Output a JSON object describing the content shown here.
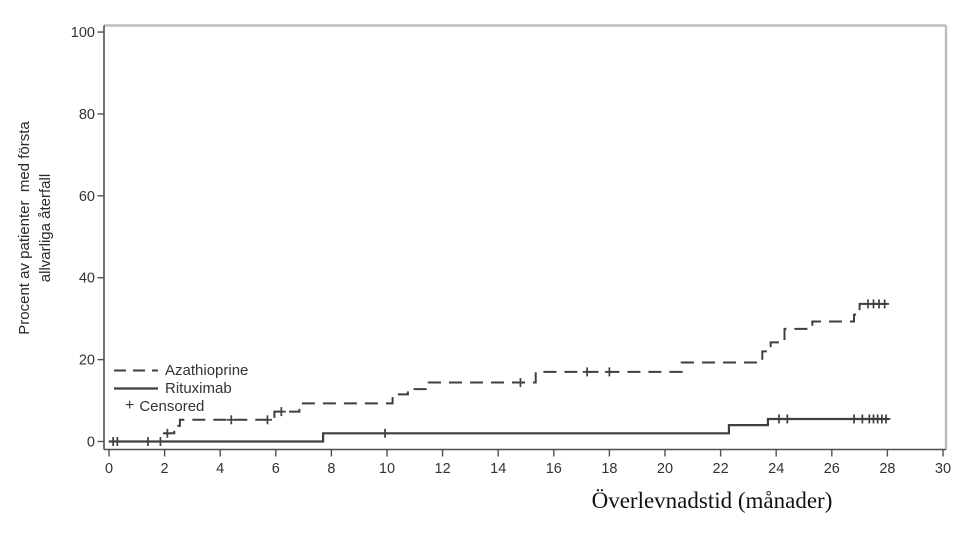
{
  "chart_data": {
    "type": "line",
    "variant": "kaplan_meier_step",
    "title": "",
    "xlabel": "Överlevnadstid (månader)",
    "ylabel_lines": [
      "Procent av patienter  med första",
      "allvarliga återfall"
    ],
    "xlim": [
      0,
      30
    ],
    "ylim": [
      0,
      100
    ],
    "x_ticks": [
      0,
      2,
      4,
      6,
      8,
      10,
      12,
      14,
      16,
      18,
      20,
      22,
      24,
      26,
      28,
      30
    ],
    "y_ticks": [
      0,
      20,
      40,
      60,
      80,
      100
    ],
    "grid": false,
    "legend_position": "inside-bottom-left",
    "legend": [
      {
        "label": "Azathioprine",
        "style": "dashed"
      },
      {
        "label": "Rituximab",
        "style": "solid"
      },
      {
        "label": "Censored",
        "style": "plus",
        "symbol": "+"
      }
    ],
    "colors": {
      "series": "#3f3f3f",
      "axis": "#4f4f4f",
      "frame": "#bdbdbd",
      "tick_text": "#333333",
      "label_text": "#111111"
    },
    "series": [
      {
        "name": "Azathioprine",
        "style": "dashed",
        "points": [
          [
            0,
            0
          ],
          [
            1.95,
            0
          ],
          [
            1.95,
            2
          ],
          [
            2.35,
            2
          ],
          [
            2.35,
            3.8
          ],
          [
            2.55,
            3.8
          ],
          [
            2.55,
            5.3
          ],
          [
            5.95,
            5.3
          ],
          [
            5.95,
            7.3
          ],
          [
            6.85,
            7.3
          ],
          [
            6.85,
            9.3
          ],
          [
            10.2,
            9.3
          ],
          [
            10.2,
            11.5
          ],
          [
            10.75,
            11.5
          ],
          [
            10.75,
            12.8
          ],
          [
            11.5,
            12.8
          ],
          [
            11.5,
            14.4
          ],
          [
            15.35,
            14.4
          ],
          [
            15.35,
            17
          ],
          [
            20.6,
            17
          ],
          [
            20.6,
            19.3
          ],
          [
            23.5,
            19.3
          ],
          [
            23.5,
            22
          ],
          [
            23.8,
            22
          ],
          [
            23.8,
            24.2
          ],
          [
            24.3,
            24.2
          ],
          [
            24.3,
            27.5
          ],
          [
            25.3,
            27.5
          ],
          [
            25.3,
            29.3
          ],
          [
            26.8,
            29.3
          ],
          [
            26.8,
            31
          ],
          [
            27.0,
            31
          ],
          [
            27.0,
            33.6
          ],
          [
            28.1,
            33.6
          ]
        ],
        "censored": [
          [
            2.1,
            2
          ],
          [
            4.4,
            5.3
          ],
          [
            5.7,
            5.3
          ],
          [
            6.2,
            7.3
          ],
          [
            14.8,
            14.4
          ],
          [
            17.2,
            17
          ],
          [
            18.0,
            17
          ],
          [
            27.3,
            33.6
          ],
          [
            27.5,
            33.6
          ],
          [
            27.7,
            33.6
          ],
          [
            27.9,
            33.6
          ]
        ]
      },
      {
        "name": "Rituximab",
        "style": "solid",
        "points": [
          [
            0,
            0
          ],
          [
            7.7,
            0
          ],
          [
            7.7,
            2
          ],
          [
            22.3,
            2
          ],
          [
            22.3,
            4
          ],
          [
            23.7,
            4
          ],
          [
            23.7,
            5.5
          ],
          [
            28.05,
            5.5
          ]
        ],
        "censored": [
          [
            0.15,
            0
          ],
          [
            0.3,
            0
          ],
          [
            1.4,
            0
          ],
          [
            1.85,
            0
          ],
          [
            9.93,
            2
          ],
          [
            24.1,
            5.5
          ],
          [
            24.4,
            5.5
          ],
          [
            26.8,
            5.5
          ],
          [
            27.1,
            5.5
          ],
          [
            27.35,
            5.5
          ],
          [
            27.5,
            5.5
          ],
          [
            27.65,
            5.5
          ],
          [
            27.8,
            5.5
          ],
          [
            27.95,
            5.5
          ]
        ]
      }
    ]
  }
}
